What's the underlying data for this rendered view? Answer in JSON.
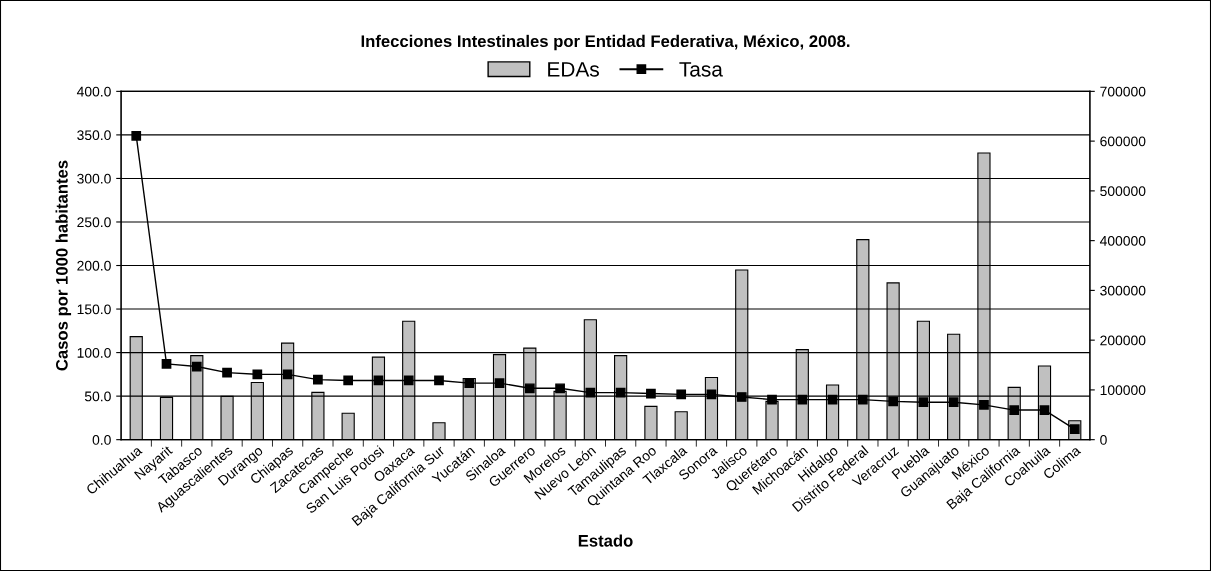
{
  "chart_data": {
    "type": "bar",
    "title": "Infecciones Intestinales por Entidad Federativa, México, 2008.",
    "xlabel": "Estado",
    "ylabel": "Casos por 1000 habitantes",
    "categories": [
      "Chihuahua",
      "Nayarit",
      "Tabasco",
      "Aguascalientes",
      "Durango",
      "Chiapas",
      "Zacatecas",
      "Campeche",
      "San Luis Potosi",
      "Oaxaca",
      "Baja California Sur",
      "Yucatán",
      "Sinaloa",
      "Guerrero",
      "Morelos",
      "Nuevo León",
      "Tamaulipas",
      "Quintana Roo",
      "Tlaxcala",
      "Sonora",
      "Jalisco",
      "Querétaro",
      "Michoacán",
      "Hidalgo",
      "Distrito Federal",
      "Veracruz",
      "Puebla",
      "Guanajuato",
      "México",
      "Baja California",
      "Coahuila",
      "Colima"
    ],
    "series": [
      {
        "name": "EDAs",
        "axis": "y2",
        "color": "#c0c0c0",
        "values": [
          207000,
          85000,
          169000,
          87000,
          115000,
          194000,
          95000,
          53000,
          166000,
          238000,
          34000,
          123000,
          171000,
          184000,
          97000,
          241000,
          169000,
          67000,
          56000,
          125000,
          341000,
          77000,
          181000,
          110000,
          402000,
          315000,
          238000,
          212000,
          576000,
          105000,
          148000,
          38000
        ]
      },
      {
        "name": "Tasa",
        "type": "line",
        "axis": "y",
        "color": "#000000",
        "marker": "square",
        "line_style": "solid",
        "values": [
          349,
          87,
          84,
          77,
          75,
          75,
          69,
          68,
          68,
          68,
          68,
          65,
          65,
          59,
          59,
          54,
          54,
          53,
          52,
          52,
          49,
          46,
          46,
          46,
          46,
          44,
          43,
          43,
          40,
          34,
          34,
          12
        ]
      }
    ],
    "ylim": [
      0,
      400
    ],
    "yticks": [
      {
        "value": 0,
        "label": "0.0"
      },
      {
        "value": 50,
        "label": "50.0"
      },
      {
        "value": 100,
        "label": "100.0"
      },
      {
        "value": 150,
        "label": "150.0"
      },
      {
        "value": 200,
        "label": "200.0"
      },
      {
        "value": 250,
        "label": "250.0"
      },
      {
        "value": 300,
        "label": "300.0"
      },
      {
        "value": 350,
        "label": "350.0"
      },
      {
        "value": 400,
        "label": "400.0"
      }
    ],
    "y2lim": [
      0,
      700000
    ],
    "y2ticks": [
      0,
      100000,
      200000,
      300000,
      400000,
      500000,
      600000,
      700000
    ],
    "grid": "y",
    "legend": "top"
  }
}
